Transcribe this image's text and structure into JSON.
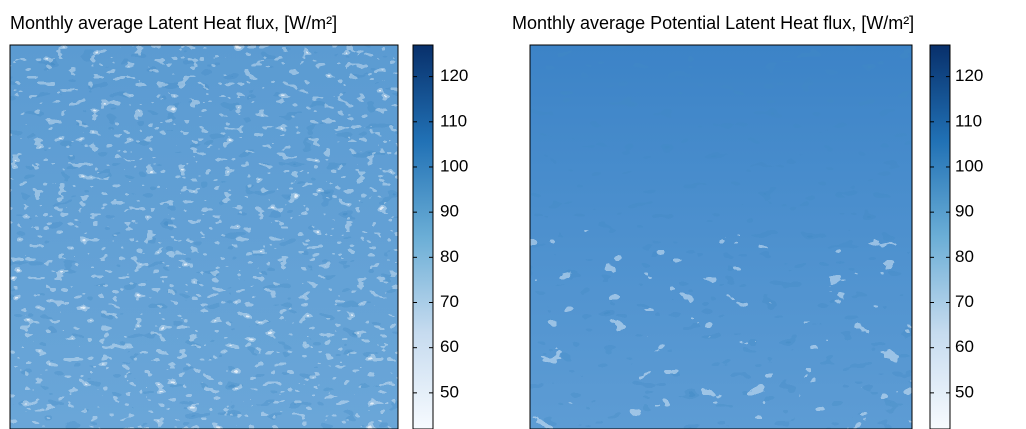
{
  "chart_data": [
    {
      "type": "heatmap",
      "title": "Monthly average Latent Heat flux, [W/m²]",
      "colormap": [
        "#f7fbff",
        "#c6dbef",
        "#6baed6",
        "#2171b5",
        "#08306b"
      ],
      "clim": [
        42,
        127
      ],
      "colorbar_ticks": [
        50,
        60,
        70,
        80,
        90,
        100,
        110,
        120
      ]
    },
    {
      "type": "heatmap",
      "title": "Monthly average Potential Latent Heat flux, [W/m²]",
      "colormap": [
        "#f7fbff",
        "#c6dbef",
        "#6baed6",
        "#2171b5",
        "#08306b"
      ],
      "clim": [
        42,
        127
      ],
      "colorbar_ticks": [
        50,
        60,
        70,
        80,
        90,
        100,
        110,
        120
      ]
    }
  ]
}
